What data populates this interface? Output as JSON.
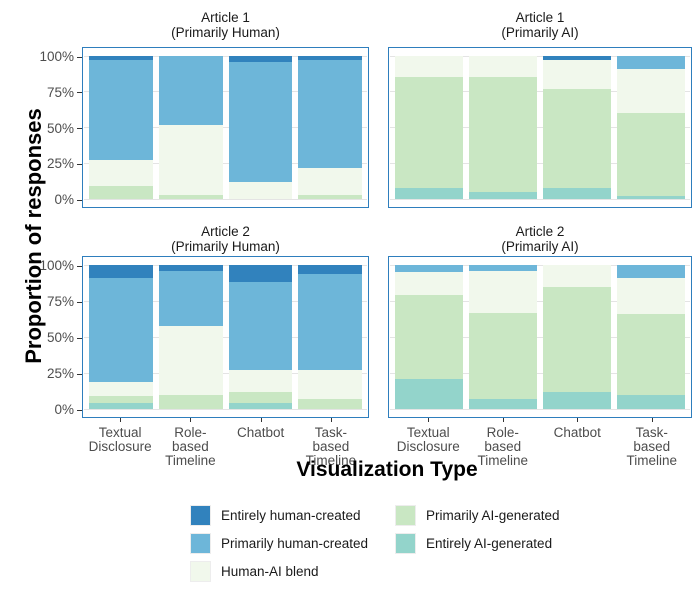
{
  "figure": {
    "y_axis_title": "Proportion of responses",
    "x_axis_title": "Visualization Type"
  },
  "chart_data": {
    "type": "bar",
    "subtype": "stacked-100-percent-faceted",
    "title": "",
    "xlabel": "Visualization Type",
    "ylabel": "Proportion of responses",
    "ylim": [
      0,
      100
    ],
    "y_ticks": [
      "0%",
      "25%",
      "50%",
      "75%",
      "100%"
    ],
    "y_tick_values": [
      0,
      25,
      50,
      75,
      100
    ],
    "grid": "horizontal-major-only",
    "legend_position": "bottom",
    "categories": [
      {
        "line1": "Textual",
        "line2": "Disclosure"
      },
      {
        "line1": "Role-based",
        "line2": "Timeline"
      },
      {
        "line1": "Chatbot",
        "line2": ""
      },
      {
        "line1": "Task-based",
        "line2": "Timeline"
      }
    ],
    "stack_order_bottom_to_top": [
      "entirely_ai",
      "primarily_ai",
      "human_ai_blend",
      "primarily_human",
      "entirely_human"
    ],
    "panels": [
      {
        "title_line1": "Article 1",
        "title_line2": "(Primarily Human)",
        "values_percent": {
          "entirely_ai": [
            0,
            0,
            0,
            0
          ],
          "primarily_ai": [
            9,
            3,
            0,
            3
          ],
          "human_ai_blend": [
            18,
            49,
            12,
            19
          ],
          "primarily_human": [
            70,
            48,
            84,
            75
          ],
          "entirely_human": [
            3,
            0,
            4,
            3
          ]
        }
      },
      {
        "title_line1": "Article 1",
        "title_line2": "(Primarily AI)",
        "values_percent": {
          "entirely_ai": [
            8,
            5,
            8,
            2
          ],
          "primarily_ai": [
            77,
            80,
            69,
            58
          ],
          "human_ai_blend": [
            15,
            15,
            20,
            31
          ],
          "primarily_human": [
            0,
            0,
            0,
            9
          ],
          "entirely_human": [
            0,
            0,
            3,
            0
          ]
        }
      },
      {
        "title_line1": "Article 2",
        "title_line2": "(Primarily Human)",
        "values_percent": {
          "entirely_ai": [
            4,
            0,
            4,
            0
          ],
          "primarily_ai": [
            5,
            10,
            8,
            7
          ],
          "human_ai_blend": [
            10,
            48,
            15,
            20
          ],
          "primarily_human": [
            72,
            38,
            61,
            67
          ],
          "entirely_human": [
            9,
            4,
            12,
            6
          ]
        }
      },
      {
        "title_line1": "Article 2",
        "title_line2": "(Primarily AI)",
        "values_percent": {
          "entirely_ai": [
            21,
            7,
            12,
            10
          ],
          "primarily_ai": [
            58,
            60,
            73,
            56
          ],
          "human_ai_blend": [
            16,
            29,
            15,
            25
          ],
          "primarily_human": [
            5,
            4,
            0,
            9
          ],
          "entirely_human": [
            0,
            0,
            0,
            0
          ]
        }
      }
    ],
    "legend": {
      "columns": [
        [
          "entirely_human",
          "primarily_human",
          "human_ai_blend"
        ],
        [
          "primarily_ai",
          "entirely_ai"
        ]
      ],
      "labels": {
        "entirely_human": "Entirely human-created",
        "primarily_human": "Primarily human-created",
        "human_ai_blend": "Human-AI blend",
        "primarily_ai": "Primarily AI-generated",
        "entirely_ai": "Entirely AI-generated"
      }
    },
    "colors": {
      "entirely_human": "#3182bd",
      "primarily_human": "#6db6d9",
      "human_ai_blend": "#f1f8ec",
      "primarily_ai": "#c9e7c3",
      "entirely_ai": "#93d4cb",
      "panel_border": "#2e7ebd",
      "gridline": "#e4e4e4",
      "tick_text": "#4d4d4d",
      "axis_title_text": "#000000"
    }
  }
}
